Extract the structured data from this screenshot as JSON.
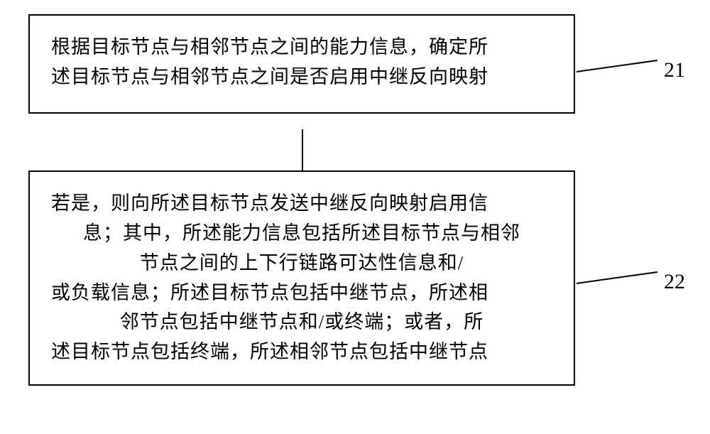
{
  "flowchart": {
    "type": "flowchart",
    "background_color": "#ffffff",
    "border_color": "#000000",
    "border_width": 2,
    "text_color": "#000000",
    "font_size": 27,
    "label_font_size": 30,
    "nodes": [
      {
        "id": "box1",
        "label_ref": "21",
        "lines": [
          "根据目标节点与相邻节点之间的能力信息，确定所",
          "述目标节点与相邻节点之间是否启用中继反向映射"
        ]
      },
      {
        "id": "box2",
        "label_ref": "22",
        "lines": [
          "若是，则向所述目标节点发送中继反向映射启用信",
          "息；其中，所述能力信息包括所述目标节点与相邻",
          "节点之间的上下行链路可达性信息和/",
          "或负载信息；所述目标节点包括中继节点，所述相",
          "邻节点包括中继节点和/或终端；或者，所",
          "述目标节点包括终端，所述相邻节点包括中继节点"
        ]
      }
    ],
    "edges": [
      {
        "from": "box1",
        "to": "box2",
        "arrow": true
      }
    ],
    "labels": {
      "l21": "21",
      "l22": "22"
    }
  }
}
